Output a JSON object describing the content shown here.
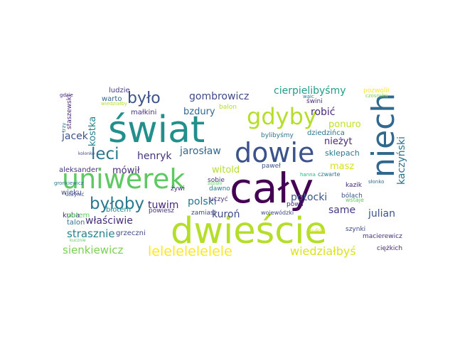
{
  "words": [
    {
      "text": "cały",
      "color": "#440154"
    },
    {
      "text": "dwieście",
      "color": "#b5de2b"
    },
    {
      "text": "świat",
      "color": "#21908c"
    },
    {
      "text": "niech",
      "color": "#31688e"
    },
    {
      "text": "uniwerek",
      "color": "#5ec962"
    },
    {
      "text": "dowie",
      "color": "#3b528b"
    },
    {
      "text": "gdyby",
      "color": "#b5de2b"
    },
    {
      "text": "byłoby",
      "color": "#2a788e"
    },
    {
      "text": "leci",
      "color": "#2a788e"
    },
    {
      "text": "było",
      "color": "#3b528b"
    },
    {
      "text": "lelelelelelele",
      "color": "#fde725"
    },
    {
      "text": "wiedziałbyś",
      "color": "#dce319"
    },
    {
      "text": "sienkiewicz",
      "color": "#7ad151"
    },
    {
      "text": "strasznie",
      "color": "#26828e"
    },
    {
      "text": "właściwie",
      "color": "#472d7b"
    },
    {
      "text": "gombrowicz",
      "color": "#3e4989"
    },
    {
      "text": "cierpielibyśmy",
      "color": "#1f9e89"
    },
    {
      "text": "kaczyński",
      "color": "#2c728e"
    },
    {
      "text": "jarosław",
      "color": "#31688e"
    },
    {
      "text": "henryk",
      "color": "#46337e"
    },
    {
      "text": "tuwim",
      "color": "#482878"
    },
    {
      "text": "polski",
      "color": "#2c728e"
    },
    {
      "text": "potocki",
      "color": "#3b528b"
    },
    {
      "text": "julian",
      "color": "#3b528b"
    },
    {
      "text": "kuroń",
      "color": "#3e4989"
    },
    {
      "text": "same",
      "color": "#443983"
    },
    {
      "text": "mówił",
      "color": "#472d7b"
    },
    {
      "text": "witold",
      "color": "#b5de2b"
    },
    {
      "text": "robić",
      "color": "#482878"
    },
    {
      "text": "bzdury",
      "color": "#31688e"
    },
    {
      "text": "jacek",
      "color": "#3b528b"
    },
    {
      "text": "kostka",
      "color": "#26828e"
    },
    {
      "text": "ponuro",
      "color": "#c2df23"
    },
    {
      "text": "nieżyt",
      "color": "#482878"
    },
    {
      "text": "masz",
      "color": "#d8e219"
    },
    {
      "text": "sklepach",
      "color": "#2a788e"
    },
    {
      "text": "dziedzińca",
      "color": "#2c728e"
    },
    {
      "text": "bylibyśmy",
      "color": "#2c728e"
    },
    {
      "text": "aleksander",
      "color": "#46337e"
    },
    {
      "text": "małkini",
      "color": "#46337e"
    },
    {
      "text": "ludzie",
      "color": "#433e85"
    },
    {
      "text": "warto",
      "color": "#31688e"
    },
    {
      "text": "staszewski",
      "color": "#482878"
    },
    {
      "text": "wieku",
      "color": "#3e4989"
    },
    {
      "text": "kuba",
      "color": "#46337e"
    },
    {
      "text": "potem",
      "color": "#5ec962"
    },
    {
      "text": "błotem",
      "color": "#23898e"
    },
    {
      "text": "talon",
      "color": "#2c728e"
    },
    {
      "text": "grzeczni",
      "color": "#3e4989"
    },
    {
      "text": "powiesz",
      "color": "#46337e"
    },
    {
      "text": "zamiast",
      "color": "#3e4989"
    },
    {
      "text": "żywi",
      "color": "#472d7b"
    },
    {
      "text": "dawno",
      "color": "#2a788e"
    },
    {
      "text": "uczyć",
      "color": "#46337e"
    },
    {
      "text": "sobie",
      "color": "#46337e"
    },
    {
      "text": "paweł",
      "color": "#3b528b"
    },
    {
      "text": "czwarte",
      "color": "#2a788e"
    },
    {
      "text": "kazik",
      "color": "#482878"
    },
    {
      "text": "bólach",
      "color": "#3b528b"
    },
    {
      "text": "wstaje",
      "color": "#5ec962"
    },
    {
      "text": "powił",
      "color": "#472d7b"
    },
    {
      "text": "szynki",
      "color": "#3e4989"
    },
    {
      "text": "wojewódzki",
      "color": "#3e4989"
    },
    {
      "text": "kukiz",
      "color": "#d8e219"
    },
    {
      "text": "macierewicz",
      "color": "#46337e"
    },
    {
      "text": "ciężkich",
      "color": "#482878"
    },
    {
      "text": "pozwolił",
      "color": "#fde725"
    },
    {
      "text": "czosnska",
      "color": "#7ad151"
    },
    {
      "text": "świni",
      "color": "#482878"
    },
    {
      "text": "waic",
      "color": "#2a788e"
    },
    {
      "text": "balon",
      "color": "#b5de2b"
    },
    {
      "text": "hanna",
      "color": "#2ab07f"
    },
    {
      "text": "słonko",
      "color": "#2c728e"
    },
    {
      "text": "gdzie",
      "color": "#482878"
    },
    {
      "text": "gronkiewicz",
      "color": "#2c728e"
    },
    {
      "text": "uczynić",
      "color": "#3b528b"
    },
    {
      "text": "trzy",
      "color": "#2c728e"
    },
    {
      "text": "kolonko",
      "color": "#3e4989"
    },
    {
      "text": "wiedziałby",
      "color": "#b5de2b"
    },
    {
      "text": "kucznie",
      "color": "#5ec962"
    },
    {
      "text": "zdzisło",
      "color": "#5ec962"
    }
  ]
}
